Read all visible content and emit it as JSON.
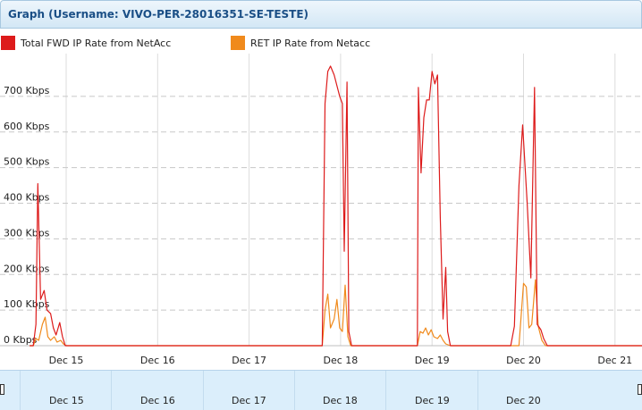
{
  "window": {
    "title": "Graph (Username: VIVO-PER-28016351-SE-TESTE)"
  },
  "legend": [
    {
      "label": "Total FWD IP Rate from NetAcc",
      "color": "#dd1b1b"
    },
    {
      "label": "RET IP Rate from Netacc",
      "color": "#f08a1c"
    }
  ],
  "navigator": {
    "labels": [
      "Dec 15",
      "Dec 16",
      "Dec 17",
      "Dec 18",
      "Dec 19",
      "Dec 20"
    ]
  },
  "chart_data": {
    "type": "line",
    "ylim": [
      0,
      800
    ],
    "yticks": [
      0,
      100,
      200,
      300,
      400,
      500,
      600,
      700
    ],
    "ytick_labels": [
      "0 Kbps",
      "100 Kbps",
      "200 Kbps",
      "300 Kbps",
      "400 Kbps",
      "500 Kbps",
      "600 Kbps",
      "700 Kbps"
    ],
    "xlim": [
      14.6,
      21.3
    ],
    "xticks": [
      15,
      16,
      17,
      18,
      19,
      20,
      21
    ],
    "xtick_labels": [
      "Dec 15",
      "Dec 16",
      "Dec 17",
      "Dec 18",
      "Dec 19",
      "Dec 20",
      "Dec 21"
    ],
    "grid": true,
    "series": [
      {
        "name": "Total FWD IP Rate from NetAcc",
        "color": "#dd1b1b",
        "points": [
          [
            14.6,
            0
          ],
          [
            14.64,
            0
          ],
          [
            14.67,
            60
          ],
          [
            14.69,
            455
          ],
          [
            14.72,
            130
          ],
          [
            14.76,
            155
          ],
          [
            14.79,
            100
          ],
          [
            14.83,
            90
          ],
          [
            14.86,
            50
          ],
          [
            14.89,
            30
          ],
          [
            14.93,
            65
          ],
          [
            14.96,
            25
          ],
          [
            14.99,
            0
          ],
          [
            17.8,
            0
          ],
          [
            17.83,
            680
          ],
          [
            17.86,
            770
          ],
          [
            17.89,
            785
          ],
          [
            17.93,
            760
          ],
          [
            17.96,
            730
          ],
          [
            17.99,
            700
          ],
          [
            18.02,
            680
          ],
          [
            18.04,
            265
          ],
          [
            18.07,
            740
          ],
          [
            18.09,
            40
          ],
          [
            18.12,
            0
          ],
          [
            18.84,
            0
          ],
          [
            18.85,
            725
          ],
          [
            18.88,
            485
          ],
          [
            18.91,
            640
          ],
          [
            18.94,
            690
          ],
          [
            18.97,
            690
          ],
          [
            19.0,
            770
          ],
          [
            19.03,
            735
          ],
          [
            19.06,
            760
          ],
          [
            19.09,
            360
          ],
          [
            19.12,
            75
          ],
          [
            19.15,
            220
          ],
          [
            19.17,
            40
          ],
          [
            19.2,
            0
          ],
          [
            19.86,
            0
          ],
          [
            19.9,
            55
          ],
          [
            19.95,
            450
          ],
          [
            19.99,
            620
          ],
          [
            20.04,
            400
          ],
          [
            20.08,
            190
          ],
          [
            20.12,
            725
          ],
          [
            20.15,
            60
          ],
          [
            20.19,
            45
          ],
          [
            20.22,
            20
          ],
          [
            20.26,
            0
          ],
          [
            21.3,
            0
          ]
        ]
      },
      {
        "name": "RET IP Rate from Netacc",
        "color": "#f08a1c",
        "points": [
          [
            14.6,
            0
          ],
          [
            14.64,
            0
          ],
          [
            14.67,
            20
          ],
          [
            14.7,
            15
          ],
          [
            14.74,
            60
          ],
          [
            14.77,
            80
          ],
          [
            14.8,
            25
          ],
          [
            14.83,
            15
          ],
          [
            14.87,
            25
          ],
          [
            14.9,
            10
          ],
          [
            14.94,
            15
          ],
          [
            14.97,
            5
          ],
          [
            15.0,
            0
          ],
          [
            17.8,
            0
          ],
          [
            17.83,
            100
          ],
          [
            17.86,
            145
          ],
          [
            17.89,
            50
          ],
          [
            17.93,
            75
          ],
          [
            17.96,
            130
          ],
          [
            17.99,
            50
          ],
          [
            18.02,
            40
          ],
          [
            18.05,
            170
          ],
          [
            18.08,
            25
          ],
          [
            18.11,
            0
          ],
          [
            18.84,
            0
          ],
          [
            18.87,
            40
          ],
          [
            18.9,
            35
          ],
          [
            18.93,
            50
          ],
          [
            18.96,
            30
          ],
          [
            18.99,
            45
          ],
          [
            19.02,
            25
          ],
          [
            19.06,
            20
          ],
          [
            19.09,
            30
          ],
          [
            19.12,
            15
          ],
          [
            19.15,
            5
          ],
          [
            19.2,
            0
          ],
          [
            19.95,
            0
          ],
          [
            20.0,
            175
          ],
          [
            20.03,
            165
          ],
          [
            20.06,
            50
          ],
          [
            20.09,
            60
          ],
          [
            20.13,
            185
          ],
          [
            20.16,
            55
          ],
          [
            20.2,
            15
          ],
          [
            20.24,
            0
          ],
          [
            21.3,
            0
          ]
        ]
      }
    ]
  }
}
